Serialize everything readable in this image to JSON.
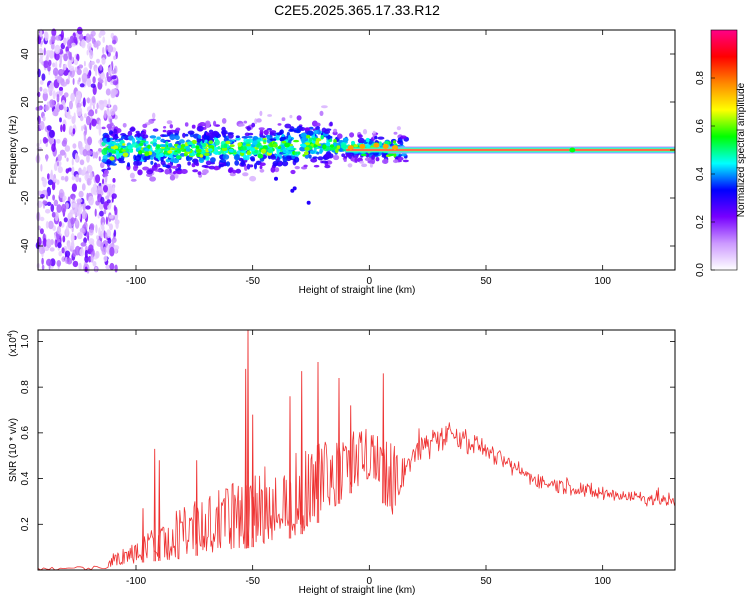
{
  "title": "C2E5.2025.365.17.33.R12",
  "chart_data": [
    {
      "type": "heatmap",
      "title": "C2E5.2025.365.17.33.R12",
      "xlabel": "Height of straight line (km)",
      "ylabel": "Frequency (Hz)",
      "xlim": [
        -142,
        131
      ],
      "ylim": [
        -50,
        50
      ],
      "xticks": [
        -100,
        -50,
        0,
        50,
        100
      ],
      "yticks": [
        -40,
        -20,
        0,
        20,
        40
      ],
      "colorbar": {
        "label": "Normalized spectral amplitude",
        "range": [
          0,
          1
        ],
        "ticks": [
          0.0,
          0.2,
          0.4,
          0.6,
          0.8
        ],
        "colormap": [
          "#ffffff",
          "#cc99ff",
          "#7700ff",
          "#0000ff",
          "#00ffff",
          "#00ff00",
          "#ffff00",
          "#ff8800",
          "#ff0000",
          "#ff0088"
        ]
      },
      "ridge": {
        "points": [
          {
            "x": -115,
            "y": 0.0
          },
          {
            "x": -100,
            "y": 0.5
          },
          {
            "x": -75,
            "y": 0.0
          },
          {
            "x": -50,
            "y": 1.0
          },
          {
            "x": -30,
            "y": 2.0
          },
          {
            "x": -20,
            "y": 3.0
          },
          {
            "x": -10,
            "y": 1.0
          },
          {
            "x": 0,
            "y": 1.0
          },
          {
            "x": 10,
            "y": 0.5
          },
          {
            "x": 20,
            "y": 0.0
          },
          {
            "x": 131,
            "y": 0.0
          }
        ],
        "amplitude_left": 0.4,
        "amplitude_right": 1.0
      },
      "noise_region": {
        "x_from": -142,
        "x_to": -112
      }
    },
    {
      "type": "line",
      "xlabel": "Height of straight line (km)",
      "ylabel": "SNR (10 * v/v)",
      "exponent_label": "(x10",
      "exponent_power": "4",
      "exponent_close": ")",
      "xlim": [
        -142,
        131
      ],
      "ylim": [
        0,
        1.05
      ],
      "xticks": [
        -100,
        -50,
        0,
        50,
        100
      ],
      "yticks": [
        0.2,
        0.4,
        0.6,
        0.8,
        1.0
      ],
      "series": [
        {
          "name": "SNR",
          "color": "#ee3333",
          "envelope": [
            {
              "x": -142,
              "low": 0.0,
              "high": 0.01
            },
            {
              "x": -113,
              "low": 0.0,
              "high": 0.02
            },
            {
              "x": -110,
              "low": 0.02,
              "high": 0.07
            },
            {
              "x": -100,
              "low": 0.03,
              "high": 0.12
            },
            {
              "x": -90,
              "low": 0.04,
              "high": 0.2
            },
            {
              "x": -80,
              "low": 0.05,
              "high": 0.28
            },
            {
              "x": -70,
              "low": 0.07,
              "high": 0.33
            },
            {
              "x": -60,
              "low": 0.08,
              "high": 0.38
            },
            {
              "x": -50,
              "low": 0.1,
              "high": 0.42
            },
            {
              "x": -40,
              "low": 0.12,
              "high": 0.48
            },
            {
              "x": -30,
              "low": 0.15,
              "high": 0.52
            },
            {
              "x": -20,
              "low": 0.22,
              "high": 0.56
            },
            {
              "x": -10,
              "low": 0.32,
              "high": 0.6
            },
            {
              "x": 0,
              "low": 0.4,
              "high": 0.62
            },
            {
              "x": 10,
              "low": 0.22,
              "high": 0.55
            },
            {
              "x": 15,
              "low": 0.38,
              "high": 0.5
            }
          ],
          "trend": [
            {
              "x": 15,
              "y": 0.42
            },
            {
              "x": 20,
              "y": 0.52
            },
            {
              "x": 28,
              "y": 0.58
            },
            {
              "x": 35,
              "y": 0.6
            },
            {
              "x": 45,
              "y": 0.56
            },
            {
              "x": 55,
              "y": 0.49
            },
            {
              "x": 65,
              "y": 0.43
            },
            {
              "x": 75,
              "y": 0.38
            },
            {
              "x": 85,
              "y": 0.37
            },
            {
              "x": 95,
              "y": 0.34
            },
            {
              "x": 105,
              "y": 0.33
            },
            {
              "x": 115,
              "y": 0.32
            },
            {
              "x": 125,
              "y": 0.31
            },
            {
              "x": 131,
              "y": 0.29
            }
          ],
          "peaks": [
            {
              "x": -97,
              "y": 0.27
            },
            {
              "x": -92,
              "y": 0.53
            },
            {
              "x": -90,
              "y": 0.48
            },
            {
              "x": -74,
              "y": 0.48
            },
            {
              "x": -53,
              "y": 0.88
            },
            {
              "x": -52,
              "y": 1.05
            },
            {
              "x": -50,
              "y": 0.68
            },
            {
              "x": -34,
              "y": 0.76
            },
            {
              "x": -29,
              "y": 0.87
            },
            {
              "x": -22,
              "y": 0.91
            },
            {
              "x": -13,
              "y": 0.84
            },
            {
              "x": -8,
              "y": 0.72
            },
            {
              "x": 6,
              "y": 0.86
            }
          ]
        }
      ]
    }
  ]
}
